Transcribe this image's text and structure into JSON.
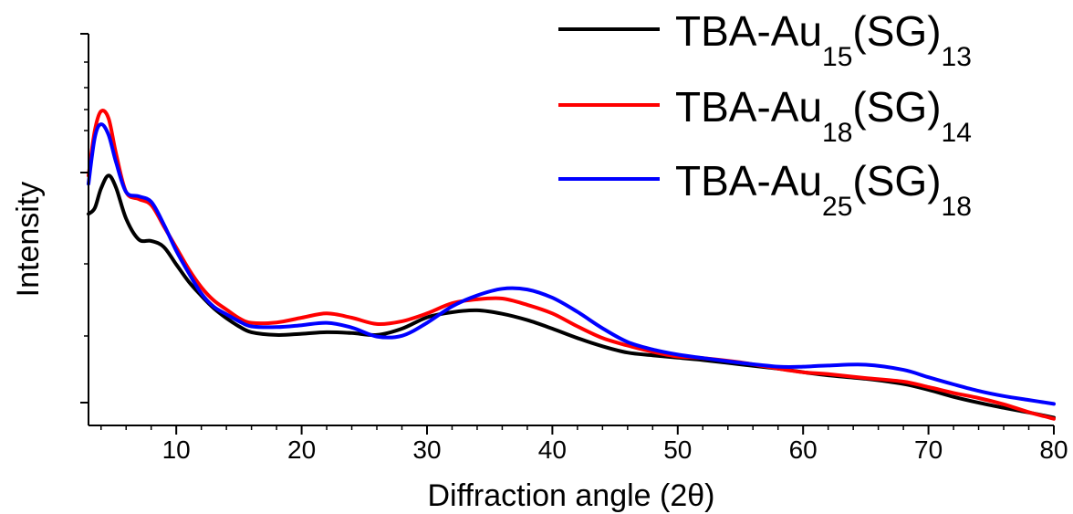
{
  "chart_data": {
    "type": "line",
    "title": "",
    "xlabel": "Diffraction angle (2θ)",
    "ylabel": "Intensity",
    "xlim": [
      3,
      80
    ],
    "yscale": "log",
    "ylim": [
      0,
      100
    ],
    "grid": false,
    "legend_position": "top-right",
    "x_ticks": [
      10,
      20,
      30,
      40,
      50,
      60,
      70,
      80
    ],
    "x_tick_labels": [
      "10",
      "20",
      "30",
      "40",
      "50",
      "60",
      "70",
      "80"
    ],
    "series": [
      {
        "name": "TBA-Au15(SG)13",
        "legend": {
          "main": "TBA-Au",
          "sub1": "15",
          "mid": "(SG)",
          "sub2": "13"
        },
        "color": "#000000",
        "x": [
          3,
          3.5,
          4,
          4.6,
          5.2,
          6,
          7,
          8,
          9,
          10,
          11,
          12,
          13,
          14,
          15,
          16,
          18,
          20,
          22,
          24,
          26,
          28,
          30,
          32,
          34,
          36,
          38,
          40,
          42,
          44,
          46,
          48,
          50,
          52,
          55,
          58,
          60,
          62,
          65,
          68,
          70,
          72,
          74,
          76,
          78,
          80
        ],
        "y": [
          54,
          55.5,
          60.5,
          63.8,
          60.7,
          52.8,
          47.5,
          47.1,
          45.6,
          41.1,
          36.7,
          33.1,
          29.9,
          27.4,
          25.3,
          23.8,
          23.1,
          23.4,
          23.8,
          23.6,
          23.1,
          24.7,
          27.6,
          28.9,
          29.4,
          28.5,
          26.9,
          24.7,
          22.3,
          20.2,
          18.6,
          17.9,
          17.3,
          16.7,
          15.6,
          14.5,
          13.6,
          12.8,
          11.9,
          10.6,
          9.1,
          7.3,
          5.8,
          4.5,
          3.3,
          2.0
        ]
      },
      {
        "name": "TBA-Au18(SG)14",
        "legend": {
          "main": "TBA-Au",
          "sub1": "18",
          "mid": "(SG)",
          "sub2": "14"
        },
        "color": "#ff0000",
        "x": [
          3,
          3.5,
          4,
          4.6,
          5.2,
          6,
          7,
          8,
          9,
          10,
          11,
          12,
          13,
          14,
          15,
          16,
          18,
          20,
          22,
          24,
          26,
          28,
          30,
          32,
          34,
          36,
          38,
          40,
          42,
          44,
          46,
          48,
          50,
          52,
          55,
          58,
          60,
          62,
          65,
          68,
          70,
          72,
          74,
          76,
          78,
          80
        ],
        "y": [
          63.8,
          75.3,
          80.2,
          78.4,
          69.4,
          59.6,
          57.8,
          56.3,
          50.9,
          45.4,
          39.9,
          35.3,
          31.9,
          29.6,
          27.4,
          26.2,
          26.3,
          27.5,
          28.6,
          27.5,
          25.9,
          26.6,
          28.6,
          31.2,
          32.2,
          32.4,
          30.8,
          28.6,
          25.3,
          22.3,
          20.4,
          18.8,
          17.6,
          17.2,
          16.1,
          14.5,
          13.6,
          13.1,
          12.1,
          11.2,
          9.8,
          8.3,
          7.0,
          5.4,
          3.4,
          1.7
        ]
      },
      {
        "name": "TBA-Au25(SG)18",
        "legend": {
          "main": "TBA-Au",
          "sub1": "25",
          "mid": "(SG)",
          "sub2": "18"
        },
        "color": "#0000ff",
        "x": [
          3,
          3.5,
          4,
          4.6,
          5.2,
          6,
          7,
          8,
          9,
          10,
          11,
          12,
          13,
          14,
          15,
          16,
          18,
          20,
          22,
          24,
          26,
          28,
          30,
          32,
          34,
          36,
          38,
          40,
          42,
          44,
          46,
          48,
          50,
          52,
          55,
          58,
          60,
          62,
          65,
          68,
          70,
          72,
          74,
          76,
          78,
          80
        ],
        "y": [
          61.7,
          73.5,
          76.9,
          74.2,
          67.2,
          59.6,
          58.5,
          57.1,
          51.4,
          44.6,
          38.9,
          33.7,
          30.3,
          28.4,
          26.6,
          25.3,
          25.1,
          25.6,
          26.2,
          25.0,
          22.7,
          22.9,
          26.2,
          30.4,
          33.2,
          34.9,
          34.7,
          32.6,
          29.0,
          24.8,
          21.3,
          19.4,
          18.1,
          17.2,
          16.0,
          15.0,
          15.0,
          15.3,
          15.5,
          14.2,
          12.3,
          10.5,
          8.8,
          7.5,
          6.5,
          5.5
        ]
      }
    ]
  }
}
